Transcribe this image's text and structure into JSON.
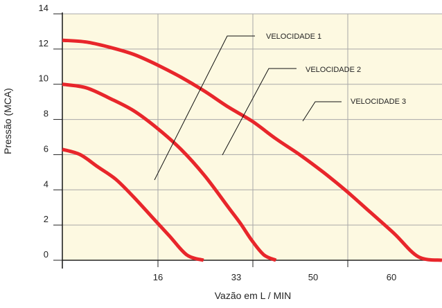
{
  "colors": {
    "plot_background": "#fdf9e1",
    "grid": "#a8a8a8",
    "curve": "#e8262b",
    "axis": "#222222",
    "leader": "#111111"
  },
  "chart_data": {
    "type": "line",
    "title": "",
    "xlabel": "Vazão em L / MIN",
    "ylabel": "Pressão (MCA)",
    "x_ticks": [
      "16",
      "33",
      "50",
      "60"
    ],
    "y_ticks": [
      "0",
      "2",
      "4",
      "6",
      "8",
      "10",
      "12",
      "14"
    ],
    "xlim": [
      0,
      64
    ],
    "ylim": [
      0,
      14
    ],
    "grid": true,
    "series": [
      {
        "name": "VELOCIDADE 1",
        "x": [
          0,
          4,
          8,
          12,
          16,
          20,
          24,
          28,
          32,
          36,
          40,
          44,
          48,
          52,
          56,
          60,
          64
        ],
        "y": [
          12.5,
          12.4,
          12.1,
          11.7,
          11.1,
          10.4,
          9.6,
          8.7,
          7.9,
          6.9,
          6.0,
          5.0,
          3.9,
          2.7,
          1.5,
          0.2,
          0
        ]
      },
      {
        "name": "VELOCIDADE 2",
        "x": [
          0,
          4,
          8,
          12,
          16,
          20,
          24,
          28,
          30,
          32,
          34,
          36
        ],
        "y": [
          10.0,
          9.8,
          9.2,
          8.5,
          7.5,
          6.3,
          4.8,
          3.0,
          2.1,
          1.1,
          0.3,
          0
        ]
      },
      {
        "name": "VELOCIDADE 3",
        "x": [
          0,
          3,
          6,
          9,
          12,
          15,
          18,
          21,
          23.8
        ],
        "y": [
          6.3,
          6.0,
          5.3,
          4.6,
          3.6,
          2.5,
          1.4,
          0.3,
          0
        ]
      }
    ],
    "annotations": [
      {
        "text": "VELOCIDADE 1"
      },
      {
        "text": "VELOCIDADE 2"
      },
      {
        "text": "VELOCIDADE 3"
      }
    ]
  }
}
